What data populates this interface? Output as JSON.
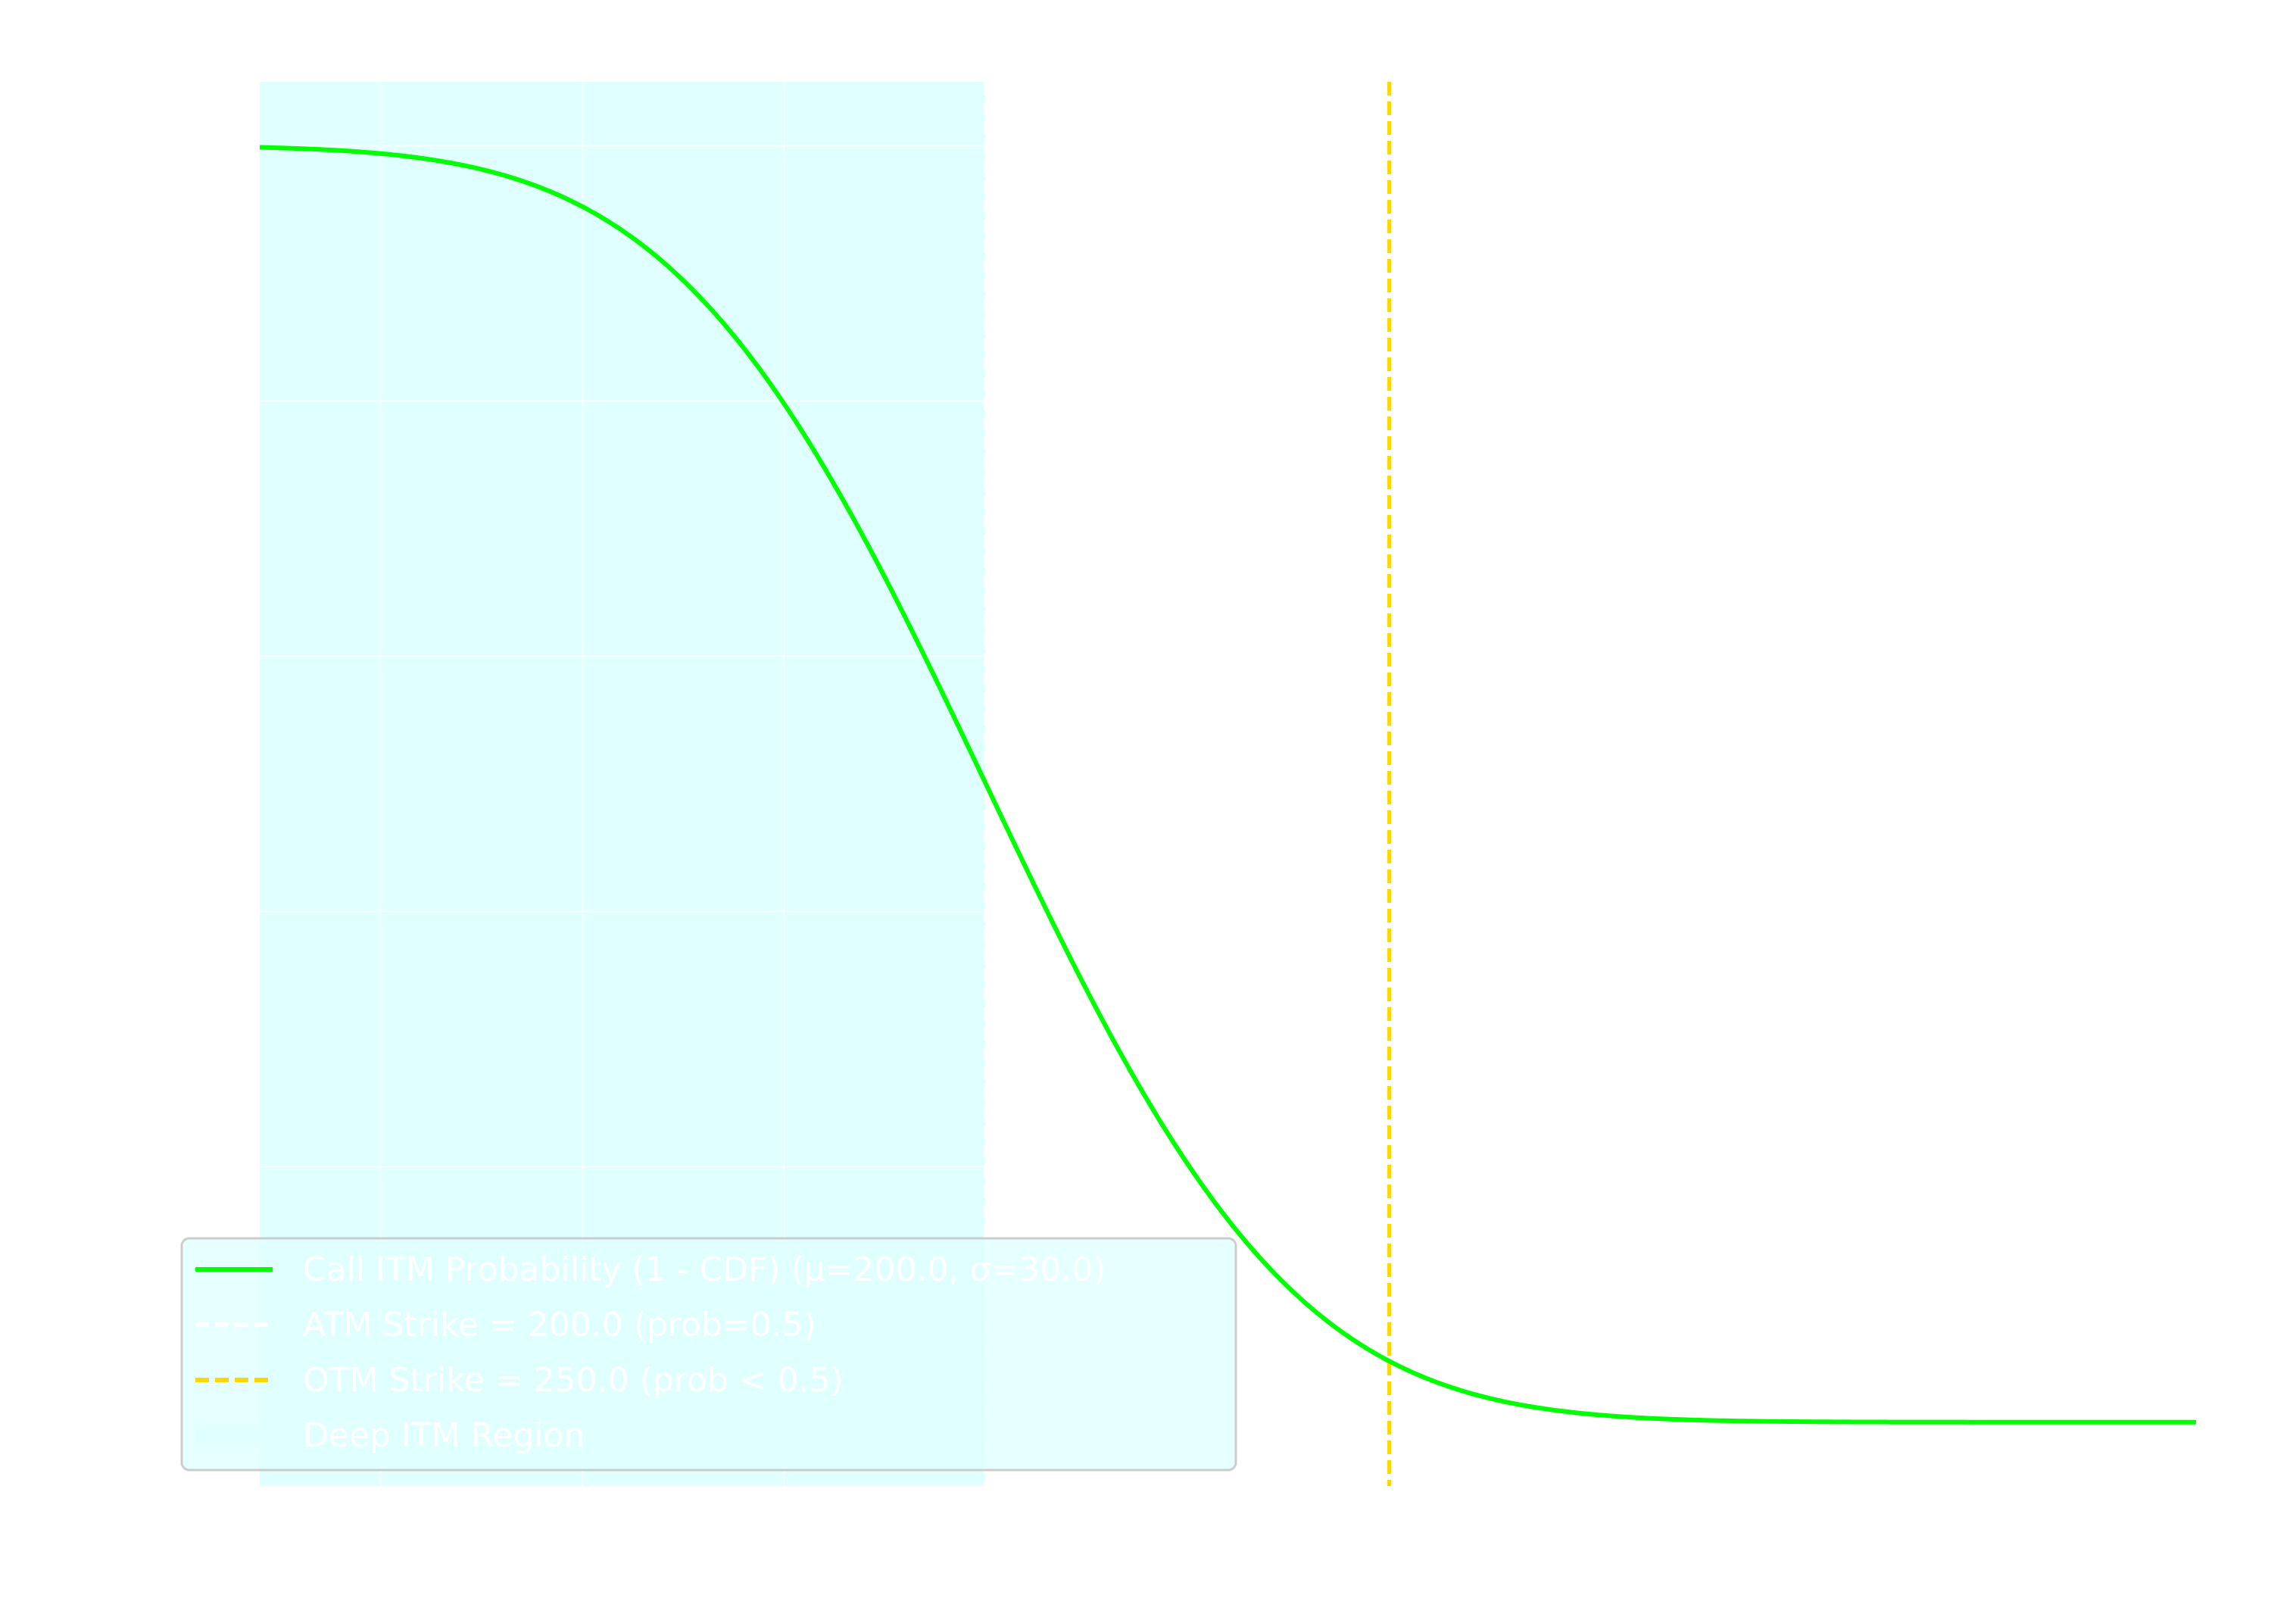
{
  "chart_data": {
    "type": "line",
    "title": "",
    "xlabel": "",
    "ylabel": "",
    "xlim": [
      110,
      350
    ],
    "ylim": [
      -0.05,
      1.05
    ],
    "grid": true,
    "legend_position": "lower-left",
    "background": "#ffffff",
    "series": [
      {
        "name": "Call ITM Probability (1 - CDF) (μ=200.0, σ=30.0)",
        "kind": "line",
        "color": "#00ff00",
        "x": [
          110,
          120,
          130,
          140,
          150,
          160,
          170,
          180,
          190,
          200,
          210,
          220,
          230,
          240,
          250,
          260,
          270,
          280,
          290,
          300,
          310,
          320,
          330,
          340,
          350
        ],
        "y": [
          0.9987,
          0.9962,
          0.9901,
          0.9772,
          0.9522,
          0.9088,
          0.8413,
          0.7475,
          0.6306,
          0.5,
          0.3694,
          0.2525,
          0.1587,
          0.0912,
          0.0478,
          0.0228,
          0.0099,
          0.0038,
          0.0013,
          0.0004,
          0.0001,
          0.0,
          0.0,
          0.0,
          0.0
        ]
      },
      {
        "name": "ATM Strike = 200.0 (prob=0.5)",
        "kind": "vline",
        "x": 200,
        "color": "#ffffff",
        "style": "dashed"
      },
      {
        "name": "OTM Strike = 250.0 (prob < 0.5)",
        "kind": "vline",
        "x": 250,
        "color": "#ffd700",
        "style": "dashed"
      },
      {
        "name": "Deep ITM Region",
        "kind": "span",
        "x_range": [
          110,
          200
        ],
        "color": "#e0ffff"
      }
    ],
    "legend": [
      "Call ITM Probability (1 - CDF) (μ=200.0, σ=30.0)",
      "ATM Strike = 200.0 (prob=0.5)",
      "OTM Strike = 250.0 (prob < 0.5)",
      "Deep ITM Region"
    ]
  }
}
